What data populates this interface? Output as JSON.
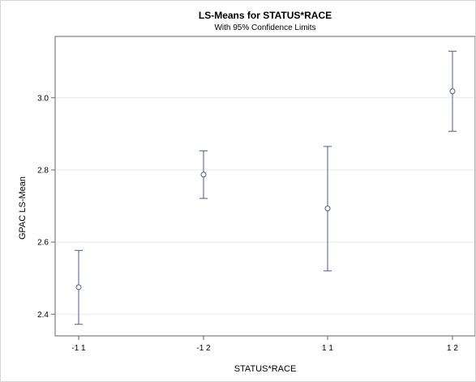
{
  "chart_data": {
    "type": "scatter",
    "title": "LS-Means for STATUS*RACE",
    "subtitle": "With 95% Confidence Limits",
    "xlabel": "STATUS*RACE",
    "ylabel": "GPAC LS-Mean",
    "categories": [
      "-1 1",
      "-1 2",
      "1 1",
      "1 2"
    ],
    "series": [
      {
        "values": [
          2.475,
          2.787,
          2.693,
          3.018
        ],
        "lower": [
          2.372,
          2.721,
          2.52,
          2.907
        ],
        "upper": [
          2.577,
          2.853,
          2.865,
          3.129
        ]
      }
    ],
    "ylim": [
      2.34,
      3.17
    ],
    "yticks": [
      "2.4",
      "2.6",
      "2.8",
      "3.0"
    ],
    "grid": "horizontal",
    "colors": {
      "marker": "#4a5a9c",
      "grid": "#e8e8e8",
      "axis": "#666666"
    }
  }
}
